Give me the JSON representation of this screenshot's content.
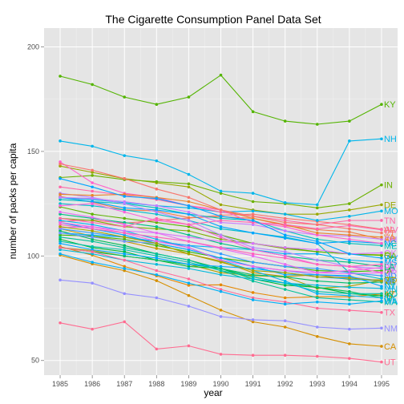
{
  "chart_data": {
    "type": "line",
    "title": "The Cigarette Consumption Panel Data Set",
    "xlabel": "year",
    "ylabel": "number of packs per capita",
    "x": [
      1985,
      1986,
      1987,
      1988,
      1989,
      1990,
      1991,
      1992,
      1993,
      1994,
      1995
    ],
    "xlim": [
      1984.5,
      1995.5
    ],
    "ylim": [
      43,
      209
    ],
    "x_ticks": [
      1985,
      1986,
      1987,
      1988,
      1989,
      1990,
      1991,
      1992,
      1993,
      1994,
      1995
    ],
    "y_ticks": [
      50,
      100,
      150,
      200
    ],
    "grid": true,
    "legend": "none",
    "series": [
      {
        "name": "AL",
        "color": "#F8766D",
        "values": [
          116.5,
          117.2,
          115.7,
          117.0,
          118.1,
          119.5,
          120.0,
          118.0,
          116.5,
          115.0,
          112.8
        ]
      },
      {
        "name": "AR",
        "color": "#F17D4C",
        "values": [
          128.5,
          125.7,
          122.1,
          121.5,
          118.3,
          118.8,
          118.0,
          114.5,
          112.6,
          111.5,
          108.0
        ]
      },
      {
        "name": "AZ",
        "color": "#E58700",
        "values": [
          104.5,
          100.4,
          95.0,
          90.5,
          86.0,
          86.2,
          82.5,
          80.0,
          80.5,
          80.5,
          81.8
        ]
      },
      {
        "name": "CA",
        "color": "#D58F00",
        "values": [
          100.4,
          96.2,
          93.0,
          88.2,
          81.1,
          74.1,
          68.5,
          66.0,
          61.5,
          58.0,
          56.8
        ]
      },
      {
        "name": "CO",
        "color": "#C49A00",
        "values": [
          113.0,
          109.5,
          107.0,
          103.6,
          101.0,
          97.5,
          92.0,
          90.2,
          91.0,
          88.7,
          88.6
        ]
      },
      {
        "name": "CT",
        "color": "#B0A000",
        "values": [
          104.0,
          102.6,
          100.0,
          98.0,
          96.0,
          92.0,
          90.6,
          90.0,
          84.5,
          85.5,
          88.4
        ]
      },
      {
        "name": "DE",
        "color": "#99A800",
        "values": [
          143.0,
          140.0,
          137.0,
          135.0,
          133.0,
          124.5,
          122.0,
          120.0,
          120.0,
          122.0,
          124.5
        ]
      },
      {
        "name": "FL",
        "color": "#7EAF00",
        "values": [
          118.0,
          117.0,
          114.0,
          113.0,
          112.0,
          108.0,
          106.0,
          103.5,
          102.0,
          101.0,
          100.5
        ]
      },
      {
        "name": "GA",
        "color": "#5DB300",
        "values": [
          123.5,
          120.0,
          118.0,
          116.0,
          114.0,
          110.0,
          106.0,
          104.0,
          102.0,
          101.0,
          100.2
        ]
      },
      {
        "name": "IA",
        "color": "#39B600",
        "values": [
          110.0,
          109.5,
          108.0,
          105.0,
          102.0,
          99.0,
          97.0,
          95.0,
          93.0,
          92.5,
          93.0
        ]
      },
      {
        "name": "ID",
        "color": "#00BA38",
        "values": [
          108.0,
          104.0,
          102.0,
          98.0,
          95.0,
          94.0,
          89.0,
          86.0,
          85.0,
          82.0,
          81.0
        ]
      },
      {
        "name": "IL",
        "color": "#00BC56",
        "values": [
          112.0,
          108.0,
          105.0,
          101.0,
          98.0,
          94.0,
          90.0,
          87.0,
          85.0,
          83.0,
          80.0
        ]
      },
      {
        "name": "IN",
        "color": "#6BB100",
        "values": [
          137.5,
          138.5,
          136.5,
          135.5,
          134.5,
          130.0,
          126.0,
          125.0,
          123.0,
          125.0,
          134.0
        ]
      },
      {
        "name": "KS",
        "color": "#00BE6C",
        "values": [
          104.0,
          102.0,
          100.0,
          98.0,
          96.0,
          94.0,
          91.0,
          90.0,
          88.0,
          87.0,
          87.5
        ]
      },
      {
        "name": "KY",
        "color": "#53B400",
        "values": [
          186.0,
          182.0,
          176.0,
          172.5,
          176.0,
          186.5,
          169.0,
          164.5,
          163.0,
          164.5,
          172.5
        ]
      },
      {
        "name": "LA",
        "color": "#00C082",
        "values": [
          120.0,
          118.0,
          116.0,
          114.0,
          110.0,
          106.0,
          103.0,
          100.0,
          98.0,
          97.0,
          95.0
        ]
      },
      {
        "name": "MA",
        "color": "#00C096",
        "values": [
          109.0,
          107.0,
          104.0,
          101.0,
          98.0,
          93.0,
          88.0,
          84.0,
          80.0,
          79.0,
          78.0
        ]
      },
      {
        "name": "MD",
        "color": "#00C1A9",
        "values": [
          107.0,
          104.5,
          103.0,
          100.0,
          97.0,
          93.0,
          90.0,
          87.0,
          83.0,
          82.0,
          82.0
        ]
      },
      {
        "name": "ME",
        "color": "#00BFBB",
        "values": [
          127.0,
          126.0,
          125.0,
          123.0,
          120.0,
          118.0,
          117.0,
          112.0,
          108.0,
          106.0,
          105.0
        ]
      },
      {
        "name": "MI",
        "color": "#00BDCC",
        "values": [
          125.0,
          124.0,
          122.0,
          120.0,
          117.0,
          113.0,
          111.0,
          109.0,
          106.0,
          92.0,
          89.0
        ]
      },
      {
        "name": "MN",
        "color": "#00B9DB",
        "values": [
          103.0,
          101.0,
          98.0,
          96.0,
          94.0,
          91.0,
          89.0,
          87.0,
          86.0,
          85.0,
          84.5
        ]
      },
      {
        "name": "MO",
        "color": "#00B4EA",
        "values": [
          128.0,
          127.0,
          125.5,
          124.0,
          123.0,
          121.0,
          121.5,
          120.0,
          117.0,
          119.0,
          121.5
        ]
      },
      {
        "name": "MS",
        "color": "#00B0F6",
        "values": [
          111.0,
          110.0,
          109.0,
          107.0,
          105.0,
          104.0,
          103.0,
          101.0,
          101.0,
          98.0,
          97.0
        ]
      },
      {
        "name": "MT",
        "color": "#00A9FF",
        "values": [
          106.0,
          103.0,
          101.0,
          99.0,
          96.0,
          95.0,
          94.0,
          92.0,
          90.0,
          89.0,
          88.0
        ]
      },
      {
        "name": "NC",
        "color": "#00A5FF",
        "values": [
          128.0,
          126.0,
          123.0,
          122.0,
          120.0,
          114.0,
          111.0,
          108.5,
          106.0,
          107.0,
          106.0
        ]
      },
      {
        "name": "ND",
        "color": "#349DFF",
        "values": [
          113.0,
          111.0,
          109.0,
          107.0,
          105.0,
          101.0,
          97.0,
          95.0,
          94.0,
          92.0,
          90.5
        ]
      },
      {
        "name": "NE",
        "color": "#6E95FF",
        "values": [
          111.0,
          109.0,
          107.0,
          106.0,
          103.0,
          99.0,
          95.0,
          93.0,
          91.0,
          90.0,
          88.0
        ]
      },
      {
        "name": "NH",
        "color": "#00B6EB",
        "values": [
          155.0,
          152.5,
          148.0,
          145.5,
          139.0,
          131.0,
          130.0,
          125.5,
          124.5,
          155.0,
          156.0
        ]
      },
      {
        "name": "NJ",
        "color": "#00A8FF",
        "values": [
          116.0,
          113.0,
          110.0,
          106.0,
          103.0,
          99.0,
          95.0,
          91.0,
          91.0,
          90.5,
          85.5
        ]
      },
      {
        "name": "NM",
        "color": "#9590FF",
        "values": [
          88.5,
          87.0,
          82.0,
          80.0,
          76.0,
          71.0,
          69.5,
          69.0,
          66.0,
          65.0,
          65.5
        ]
      },
      {
        "name": "NV",
        "color": "#B385FF",
        "values": [
          130.0,
          128.0,
          125.0,
          121.0,
          117.0,
          110.0,
          104.0,
          102.0,
          98.0,
          95.0,
          94.0
        ]
      },
      {
        "name": "NY",
        "color": "#00B3F0",
        "values": [
          117.0,
          115.0,
          112.0,
          108.0,
          104.0,
          98.0,
          93.0,
          88.0,
          82.0,
          81.0,
          80.0
        ]
      },
      {
        "name": "OH",
        "color": "#C77CFF",
        "values": [
          128.0,
          127.5,
          126.0,
          124.0,
          121.0,
          116.0,
          115.0,
          112.0,
          110.0,
          109.5,
          108.0
        ]
      },
      {
        "name": "OK",
        "color": "#D974FC",
        "values": [
          113.5,
          114.0,
          112.0,
          111.0,
          109.0,
          107.0,
          106.0,
          104.0,
          103.0,
          101.0,
          101.5
        ]
      },
      {
        "name": "OR",
        "color": "#E76BF3",
        "values": [
          121.0,
          118.5,
          115.0,
          111.0,
          107.0,
          103.5,
          100.0,
          96.0,
          92.0,
          91.5,
          92.0
        ]
      },
      {
        "name": "PA",
        "color": "#F265E7",
        "values": [
          116.0,
          114.0,
          111.0,
          107.0,
          104.0,
          98.0,
          95.0,
          93.0,
          92.0,
          93.0,
          94.5
        ]
      },
      {
        "name": "RI",
        "color": "#FA62DB",
        "values": [
          124.0,
          125.0,
          121.0,
          117.0,
          115.0,
          109.0,
          103.0,
          100.0,
          96.0,
          95.0,
          92.0
        ]
      },
      {
        "name": "SC",
        "color": "#FF61CC",
        "values": [
          145.0,
          135.0,
          130.0,
          128.0,
          124.0,
          122.0,
          116.0,
          114.0,
          110.0,
          108.0,
          106.0
        ]
      },
      {
        "name": "SD",
        "color": "#FF63BC",
        "values": [
          115.0,
          113.0,
          111.0,
          109.0,
          107.0,
          104.0,
          101.0,
          99.0,
          96.0,
          95.0,
          96.0
        ]
      },
      {
        "name": "TN",
        "color": "#FF66A8",
        "values": [
          133.0,
          131.0,
          129.0,
          127.0,
          124.0,
          121.0,
          119.0,
          117.0,
          115.0,
          117.0,
          117.0
        ]
      },
      {
        "name": "TX",
        "color": "#FF6A98",
        "values": [
          104.0,
          102.0,
          98.0,
          93.0,
          89.0,
          84.0,
          80.0,
          78.0,
          75.0,
          74.0,
          73.0
        ]
      },
      {
        "name": "UT",
        "color": "#FF6C91",
        "values": [
          68.0,
          65.0,
          68.5,
          55.5,
          57.0,
          53.0,
          52.5,
          52.5,
          52.0,
          51.0,
          49.3
        ]
      },
      {
        "name": "VA",
        "color": "#E9842C",
        "values": [
          129.5,
          129.0,
          129.5,
          128.0,
          126.0,
          122.0,
          118.0,
          115.0,
          111.0,
          110.0,
          109.0
        ]
      },
      {
        "name": "VT",
        "color": "#F8766D",
        "values": [
          144.0,
          141.0,
          137.0,
          132.0,
          128.0,
          122.0,
          119.0,
          116.0,
          115.0,
          113.0,
          111.0
        ]
      },
      {
        "name": "WA",
        "color": "#00B0F6",
        "values": [
          101.0,
          97.0,
          94.0,
          91.0,
          87.0,
          83.0,
          79.0,
          77.0,
          78.0,
          77.0,
          78.5
        ]
      },
      {
        "name": "WI",
        "color": "#A3A500",
        "values": [
          114.0,
          112.0,
          109.0,
          106.0,
          101.0,
          97.0,
          93.0,
          92.0,
          90.0,
          89.5,
          88.0
        ]
      },
      {
        "name": "WV",
        "color": "#FF64B0",
        "values": [
          118.0,
          116.0,
          114.0,
          118.0,
          115.0,
          117.0,
          116.0,
          115.0,
          113.0,
          114.5,
          112.5
        ]
      },
      {
        "name": "WY",
        "color": "#00A5FF",
        "values": [
          137.0,
          133.0,
          128.5,
          127.5,
          124.0,
          119.0,
          117.0,
          110.0,
          107.0,
          101.0,
          99.0
        ]
      }
    ],
    "end_labels": [
      {
        "text": "KY",
        "series": "KY"
      },
      {
        "text": "NH",
        "series": "NH"
      },
      {
        "text": "IN",
        "series": "IN"
      },
      {
        "text": "DE",
        "series": "DE"
      },
      {
        "text": "MO",
        "series": "MO"
      },
      {
        "text": "TN",
        "series": "TN"
      },
      {
        "text": "WV",
        "series": "WV"
      },
      {
        "text": "AL",
        "series": "AL"
      },
      {
        "text": "VT",
        "series": "VT"
      },
      {
        "text": "VA",
        "series": "VA"
      },
      {
        "text": "AR",
        "series": "AR"
      },
      {
        "text": "OH",
        "series": "OH"
      },
      {
        "text": "NC",
        "series": "NC"
      },
      {
        "text": "ME",
        "series": "ME"
      },
      {
        "text": "OK",
        "series": "OK"
      },
      {
        "text": "GA",
        "series": "GA"
      },
      {
        "text": "FL",
        "series": "FL"
      },
      {
        "text": "WY",
        "series": "WY"
      },
      {
        "text": "SD",
        "series": "SD"
      },
      {
        "text": "MS",
        "series": "MS"
      },
      {
        "text": "PA",
        "series": "PA"
      },
      {
        "text": "NV",
        "series": "NV"
      },
      {
        "text": "RI",
        "series": "RI"
      },
      {
        "text": "IA",
        "series": "IA"
      },
      {
        "text": "OR",
        "series": "OR"
      },
      {
        "text": "ND",
        "series": "ND"
      },
      {
        "text": "MI",
        "series": "MI"
      },
      {
        "text": "CO",
        "series": "CO"
      },
      {
        "text": "MT",
        "series": "MT"
      },
      {
        "text": "KS",
        "series": "KS"
      },
      {
        "text": "CT",
        "series": "CT"
      },
      {
        "text": "WI",
        "series": "WI"
      },
      {
        "text": "NE",
        "series": "NE"
      },
      {
        "text": "NJ",
        "series": "NJ"
      },
      {
        "text": "MN",
        "series": "MN"
      },
      {
        "text": "LA",
        "series": "LA"
      },
      {
        "text": "MD",
        "series": "MD"
      },
      {
        "text": "AZ",
        "series": "AZ"
      },
      {
        "text": "ID",
        "series": "ID"
      },
      {
        "text": "IL",
        "series": "IL"
      },
      {
        "text": "NY",
        "series": "NY"
      },
      {
        "text": "MA",
        "series": "MA"
      },
      {
        "text": "WA",
        "series": "WA"
      },
      {
        "text": "TX",
        "series": "TX"
      },
      {
        "text": "NM",
        "series": "NM"
      },
      {
        "text": "CA",
        "series": "CA"
      },
      {
        "text": "UT",
        "series": "UT"
      }
    ]
  }
}
